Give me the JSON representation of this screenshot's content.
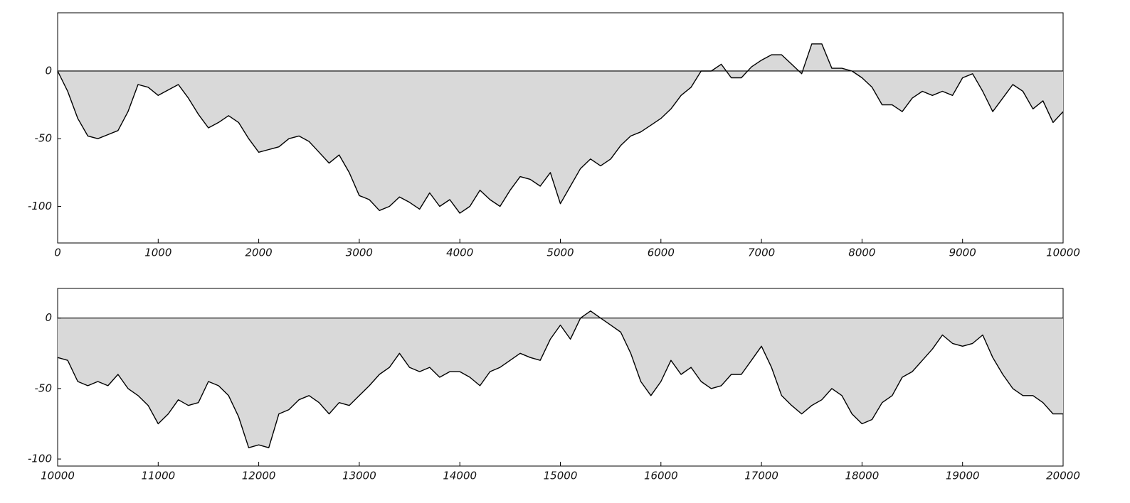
{
  "chart_data": [
    {
      "type": "area",
      "color": "#000000",
      "fill_color": "#d9d9d9",
      "zero_line": true,
      "x": [
        0,
        100,
        200,
        300,
        400,
        500,
        600,
        700,
        800,
        900,
        1000,
        1100,
        1200,
        1300,
        1400,
        1500,
        1600,
        1700,
        1800,
        1900,
        2000,
        2100,
        2200,
        2300,
        2400,
        2500,
        2600,
        2700,
        2800,
        2900,
        3000,
        3100,
        3200,
        3300,
        3400,
        3500,
        3600,
        3700,
        3800,
        3900,
        4000,
        4100,
        4200,
        4300,
        4400,
        4500,
        4600,
        4700,
        4800,
        4900,
        5000,
        5100,
        5200,
        5300,
        5400,
        5500,
        5600,
        5700,
        5800,
        5900,
        6000,
        6100,
        6200,
        6300,
        6400,
        6500,
        6600,
        6700,
        6800,
        6900,
        7000,
        7100,
        7200,
        7300,
        7400,
        7500,
        7600,
        7700,
        7800,
        7900,
        8000,
        8100,
        8200,
        8300,
        8400,
        8500,
        8600,
        8700,
        8800,
        8900,
        9000,
        9100,
        9200,
        9300,
        9400,
        9500,
        9600,
        9700,
        9800,
        9900,
        10000
      ],
      "values": [
        0,
        -15,
        -35,
        -48,
        -50,
        -47,
        -44,
        -30,
        -10,
        -12,
        -18,
        -14,
        -10,
        -20,
        -32,
        -42,
        -38,
        -33,
        -38,
        -50,
        -60,
        -58,
        -56,
        -50,
        -48,
        -52,
        -60,
        -68,
        -62,
        -75,
        -92,
        -95,
        -103,
        -100,
        -93,
        -97,
        -102,
        -90,
        -100,
        -95,
        -105,
        -100,
        -88,
        -95,
        -100,
        -88,
        -78,
        -80,
        -85,
        -75,
        -98,
        -85,
        -72,
        -65,
        -70,
        -65,
        -55,
        -48,
        -45,
        -40,
        -35,
        -28,
        -18,
        -12,
        0,
        0,
        5,
        -5,
        -5,
        3,
        8,
        12,
        12,
        5,
        -2,
        20,
        20,
        2,
        2,
        0,
        -5,
        -12,
        -25,
        -25,
        -30,
        -20,
        -15,
        -18,
        -15,
        -18,
        -5,
        -2,
        -15,
        -30,
        -20,
        -10,
        -15,
        -28,
        -22,
        -38,
        -30
      ],
      "xlim": [
        0,
        10000
      ],
      "xticks": [
        0,
        1000,
        2000,
        3000,
        4000,
        5000,
        6000,
        7000,
        8000,
        9000,
        10000
      ],
      "ylim": [
        -127,
        43
      ],
      "yticks": [
        -100,
        -50,
        0
      ]
    },
    {
      "type": "area",
      "color": "#000000",
      "fill_color": "#d9d9d9",
      "zero_line": true,
      "x": [
        10000,
        10100,
        10200,
        10300,
        10400,
        10500,
        10600,
        10700,
        10800,
        10900,
        11000,
        11100,
        11200,
        11300,
        11400,
        11500,
        11600,
        11700,
        11800,
        11900,
        12000,
        12100,
        12200,
        12300,
        12400,
        12500,
        12600,
        12700,
        12800,
        12900,
        13000,
        13100,
        13200,
        13300,
        13400,
        13500,
        13600,
        13700,
        13800,
        13900,
        14000,
        14100,
        14200,
        14300,
        14400,
        14500,
        14600,
        14700,
        14800,
        14900,
        15000,
        15100,
        15200,
        15300,
        15400,
        15500,
        15600,
        15700,
        15800,
        15900,
        16000,
        16100,
        16200,
        16300,
        16400,
        16500,
        16600,
        16700,
        16800,
        16900,
        17000,
        17100,
        17200,
        17300,
        17400,
        17500,
        17600,
        17700,
        17800,
        17900,
        18000,
        18100,
        18200,
        18300,
        18400,
        18500,
        18600,
        18700,
        18800,
        18900,
        19000,
        19100,
        19200,
        19300,
        19400,
        19500,
        19600,
        19700,
        19800,
        19900,
        20000
      ],
      "values": [
        -28,
        -30,
        -45,
        -48,
        -45,
        -48,
        -40,
        -50,
        -55,
        -62,
        -75,
        -68,
        -58,
        -62,
        -60,
        -45,
        -48,
        -55,
        -70,
        -92,
        -90,
        -92,
        -68,
        -65,
        -58,
        -55,
        -60,
        -68,
        -60,
        -62,
        -55,
        -48,
        -40,
        -35,
        -25,
        -35,
        -38,
        -35,
        -42,
        -38,
        -38,
        -42,
        -48,
        -38,
        -35,
        -30,
        -25,
        -28,
        -30,
        -15,
        -5,
        -15,
        0,
        5,
        0,
        -5,
        -10,
        -25,
        -45,
        -55,
        -45,
        -30,
        -40,
        -35,
        -45,
        -50,
        -48,
        -40,
        -40,
        -30,
        -20,
        -35,
        -55,
        -62,
        -68,
        -62,
        -58,
        -50,
        -55,
        -68,
        -75,
        -72,
        -60,
        -55,
        -42,
        -38,
        -30,
        -22,
        -12,
        -18,
        -20,
        -18,
        -12,
        -28,
        -40,
        -50,
        -55,
        -55,
        -60,
        -68,
        -68
      ],
      "xlim": [
        10000,
        20000
      ],
      "xticks": [
        10000,
        11000,
        12000,
        13000,
        14000,
        15000,
        16000,
        17000,
        18000,
        19000,
        20000
      ],
      "ylim": [
        -105,
        21
      ],
      "yticks": [
        -100,
        -50,
        0
      ]
    }
  ]
}
